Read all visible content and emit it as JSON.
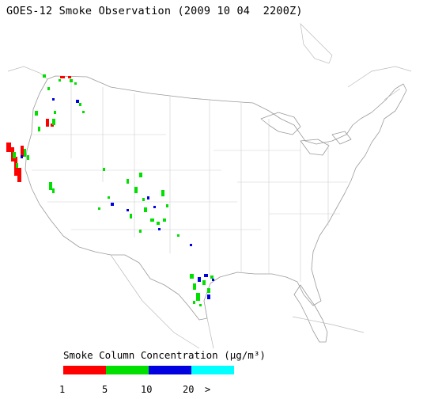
{
  "title": "GOES-12 Smoke Observation (2009 10 04  2200Z)",
  "legend": {
    "title": "Smoke Column Concentration (μg/m³)",
    "bins": [
      {
        "color": "#ff0000",
        "label": "1"
      },
      {
        "color": "#00e000",
        "label": "5"
      },
      {
        "color": "#0000e0",
        "label": "10"
      },
      {
        "color": "#00ffff",
        "label": "20"
      }
    ],
    "overflow_label": ">"
  }
}
